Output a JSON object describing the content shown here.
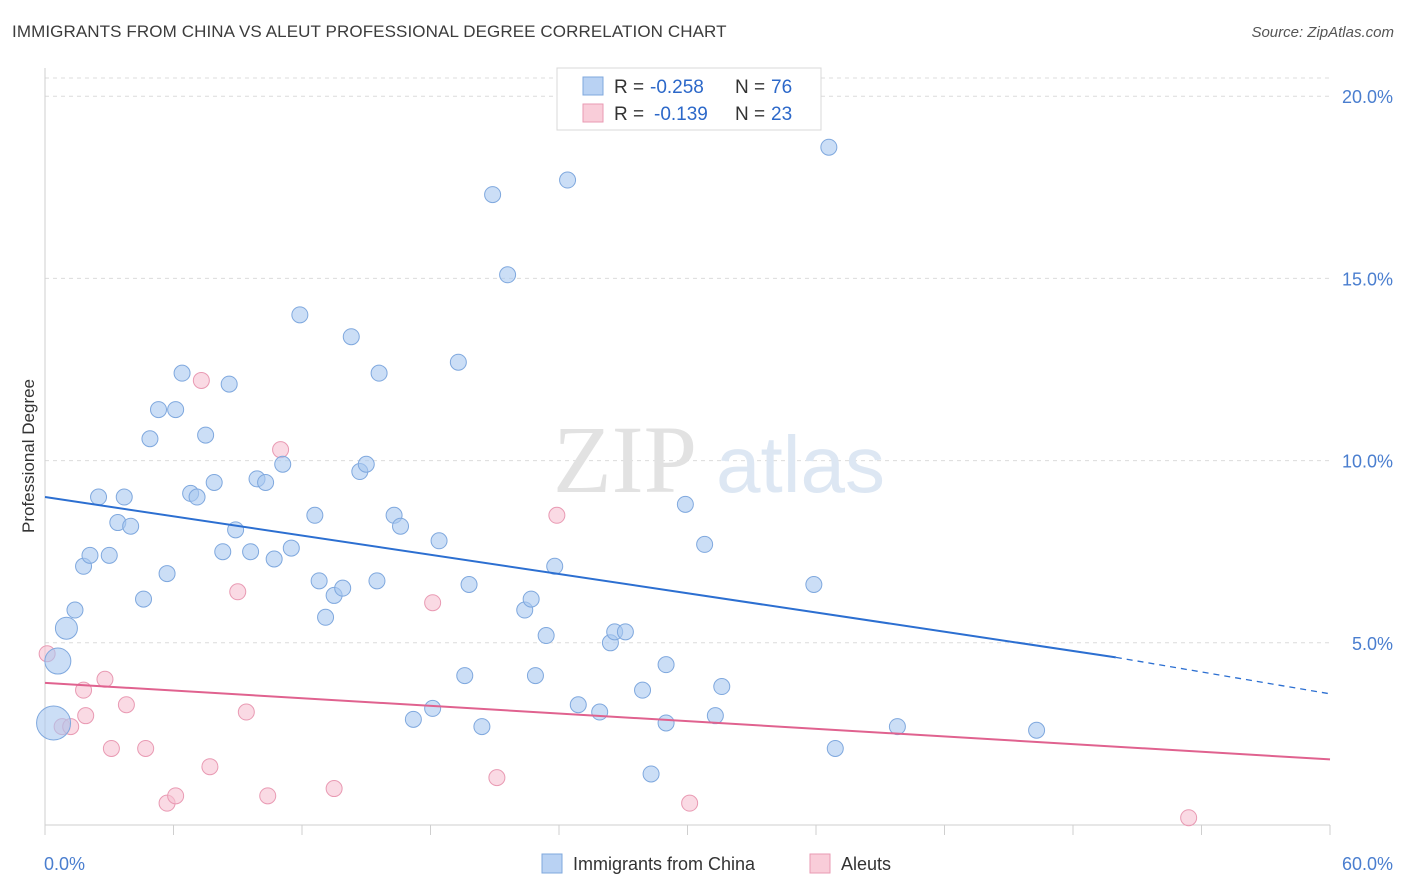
{
  "title": "IMMIGRANTS FROM CHINA VS ALEUT PROFESSIONAL DEGREE CORRELATION CHART",
  "source": "Source: ZipAtlas.com",
  "watermark": {
    "zip": "ZIP",
    "atlas": "atlas"
  },
  "colors": {
    "blue": "#a8c8f0",
    "blue_stroke": "#7fa8de",
    "blue_line": "#2c6fd1",
    "pink": "#f7c2d2",
    "pink_stroke": "#e99ab3",
    "pink_line": "#e0628f"
  },
  "legend": {
    "r_label": "R =",
    "n_label": "N =",
    "rows": [
      {
        "r": "-0.258",
        "n": "76"
      },
      {
        "r": "-0.139",
        "n": "23"
      }
    ]
  },
  "bottom_legend": [
    "Immigrants from China",
    "Aleuts"
  ],
  "chart_data": {
    "type": "scatter",
    "title": "IMMIGRANTS FROM CHINA VS ALEUT PROFESSIONAL DEGREE CORRELATION CHART",
    "xlabel": "",
    "ylabel": "Professional Degree",
    "xlim": [
      0,
      60
    ],
    "ylim": [
      0,
      20.5
    ],
    "x_tick_labels": [
      "0.0%",
      "60.0%"
    ],
    "y_ticks": [
      5,
      10,
      15,
      20
    ],
    "y_tick_labels": [
      "5.0%",
      "10.0%",
      "15.0%",
      "20.0%"
    ],
    "grid": true,
    "legend_position": "top-center",
    "series": [
      {
        "name": "Immigrants from China",
        "points": [
          [
            0.4,
            2.8
          ],
          [
            0.6,
            4.5
          ],
          [
            1.0,
            5.4
          ],
          [
            1.4,
            5.9
          ],
          [
            1.8,
            7.1
          ],
          [
            2.1,
            7.4
          ],
          [
            2.5,
            9.0
          ],
          [
            3.0,
            7.4
          ],
          [
            3.4,
            8.3
          ],
          [
            3.7,
            9.0
          ],
          [
            4.0,
            8.2
          ],
          [
            4.6,
            6.2
          ],
          [
            4.9,
            10.6
          ],
          [
            5.3,
            11.4
          ],
          [
            5.7,
            6.9
          ],
          [
            6.1,
            11.4
          ],
          [
            6.4,
            12.4
          ],
          [
            6.8,
            9.1
          ],
          [
            7.1,
            9.0
          ],
          [
            7.5,
            10.7
          ],
          [
            7.9,
            9.4
          ],
          [
            8.3,
            7.5
          ],
          [
            8.6,
            12.1
          ],
          [
            8.9,
            8.1
          ],
          [
            9.6,
            7.5
          ],
          [
            9.9,
            9.5
          ],
          [
            10.3,
            9.4
          ],
          [
            10.7,
            7.3
          ],
          [
            11.1,
            9.9
          ],
          [
            11.5,
            7.6
          ],
          [
            11.9,
            14.0
          ],
          [
            12.6,
            8.5
          ],
          [
            12.8,
            6.7
          ],
          [
            13.1,
            5.7
          ],
          [
            13.5,
            6.3
          ],
          [
            13.9,
            6.5
          ],
          [
            14.3,
            13.4
          ],
          [
            14.7,
            9.7
          ],
          [
            15.0,
            9.9
          ],
          [
            15.5,
            6.7
          ],
          [
            15.6,
            12.4
          ],
          [
            16.3,
            8.5
          ],
          [
            16.6,
            8.2
          ],
          [
            17.2,
            2.9
          ],
          [
            18.1,
            3.2
          ],
          [
            18.4,
            7.8
          ],
          [
            19.3,
            12.7
          ],
          [
            19.6,
            4.1
          ],
          [
            19.8,
            6.6
          ],
          [
            20.4,
            2.7
          ],
          [
            20.9,
            17.3
          ],
          [
            21.6,
            15.1
          ],
          [
            22.4,
            5.9
          ],
          [
            22.7,
            6.2
          ],
          [
            22.9,
            4.1
          ],
          [
            23.4,
            5.2
          ],
          [
            23.8,
            7.1
          ],
          [
            24.4,
            17.7
          ],
          [
            24.9,
            3.3
          ],
          [
            25.9,
            3.1
          ],
          [
            26.4,
            5.0
          ],
          [
            26.6,
            5.3
          ],
          [
            27.1,
            5.3
          ],
          [
            27.9,
            3.7
          ],
          [
            28.3,
            1.4
          ],
          [
            29.0,
            4.4
          ],
          [
            29.0,
            2.8
          ],
          [
            29.9,
            8.8
          ],
          [
            30.8,
            7.7
          ],
          [
            31.3,
            3.0
          ],
          [
            31.6,
            3.8
          ],
          [
            35.9,
            6.6
          ],
          [
            36.6,
            18.6
          ],
          [
            36.9,
            2.1
          ],
          [
            39.8,
            2.7
          ],
          [
            46.3,
            2.6
          ]
        ]
      },
      {
        "name": "Aleuts",
        "points": [
          [
            0.1,
            4.7
          ],
          [
            0.8,
            2.7
          ],
          [
            1.2,
            2.7
          ],
          [
            1.8,
            3.7
          ],
          [
            1.9,
            3.0
          ],
          [
            2.8,
            4.0
          ],
          [
            3.1,
            2.1
          ],
          [
            3.8,
            3.3
          ],
          [
            4.7,
            2.1
          ],
          [
            5.7,
            0.6
          ],
          [
            6.1,
            0.8
          ],
          [
            7.3,
            12.2
          ],
          [
            7.7,
            1.6
          ],
          [
            9.0,
            6.4
          ],
          [
            9.4,
            3.1
          ],
          [
            10.4,
            0.8
          ],
          [
            11.0,
            10.3
          ],
          [
            13.5,
            1.0
          ],
          [
            18.1,
            6.1
          ],
          [
            21.1,
            1.3
          ],
          [
            23.9,
            8.5
          ],
          [
            30.1,
            0.6
          ],
          [
            53.4,
            0.2
          ]
        ]
      }
    ],
    "trend_lines": [
      {
        "series": "Immigrants from China",
        "from": [
          0,
          9.0
        ],
        "to": [
          50,
          4.6
        ],
        "dashed_to": [
          60,
          3.6
        ]
      },
      {
        "series": "Aleuts",
        "from": [
          0,
          3.9
        ],
        "to": [
          60,
          1.8
        ]
      }
    ]
  }
}
